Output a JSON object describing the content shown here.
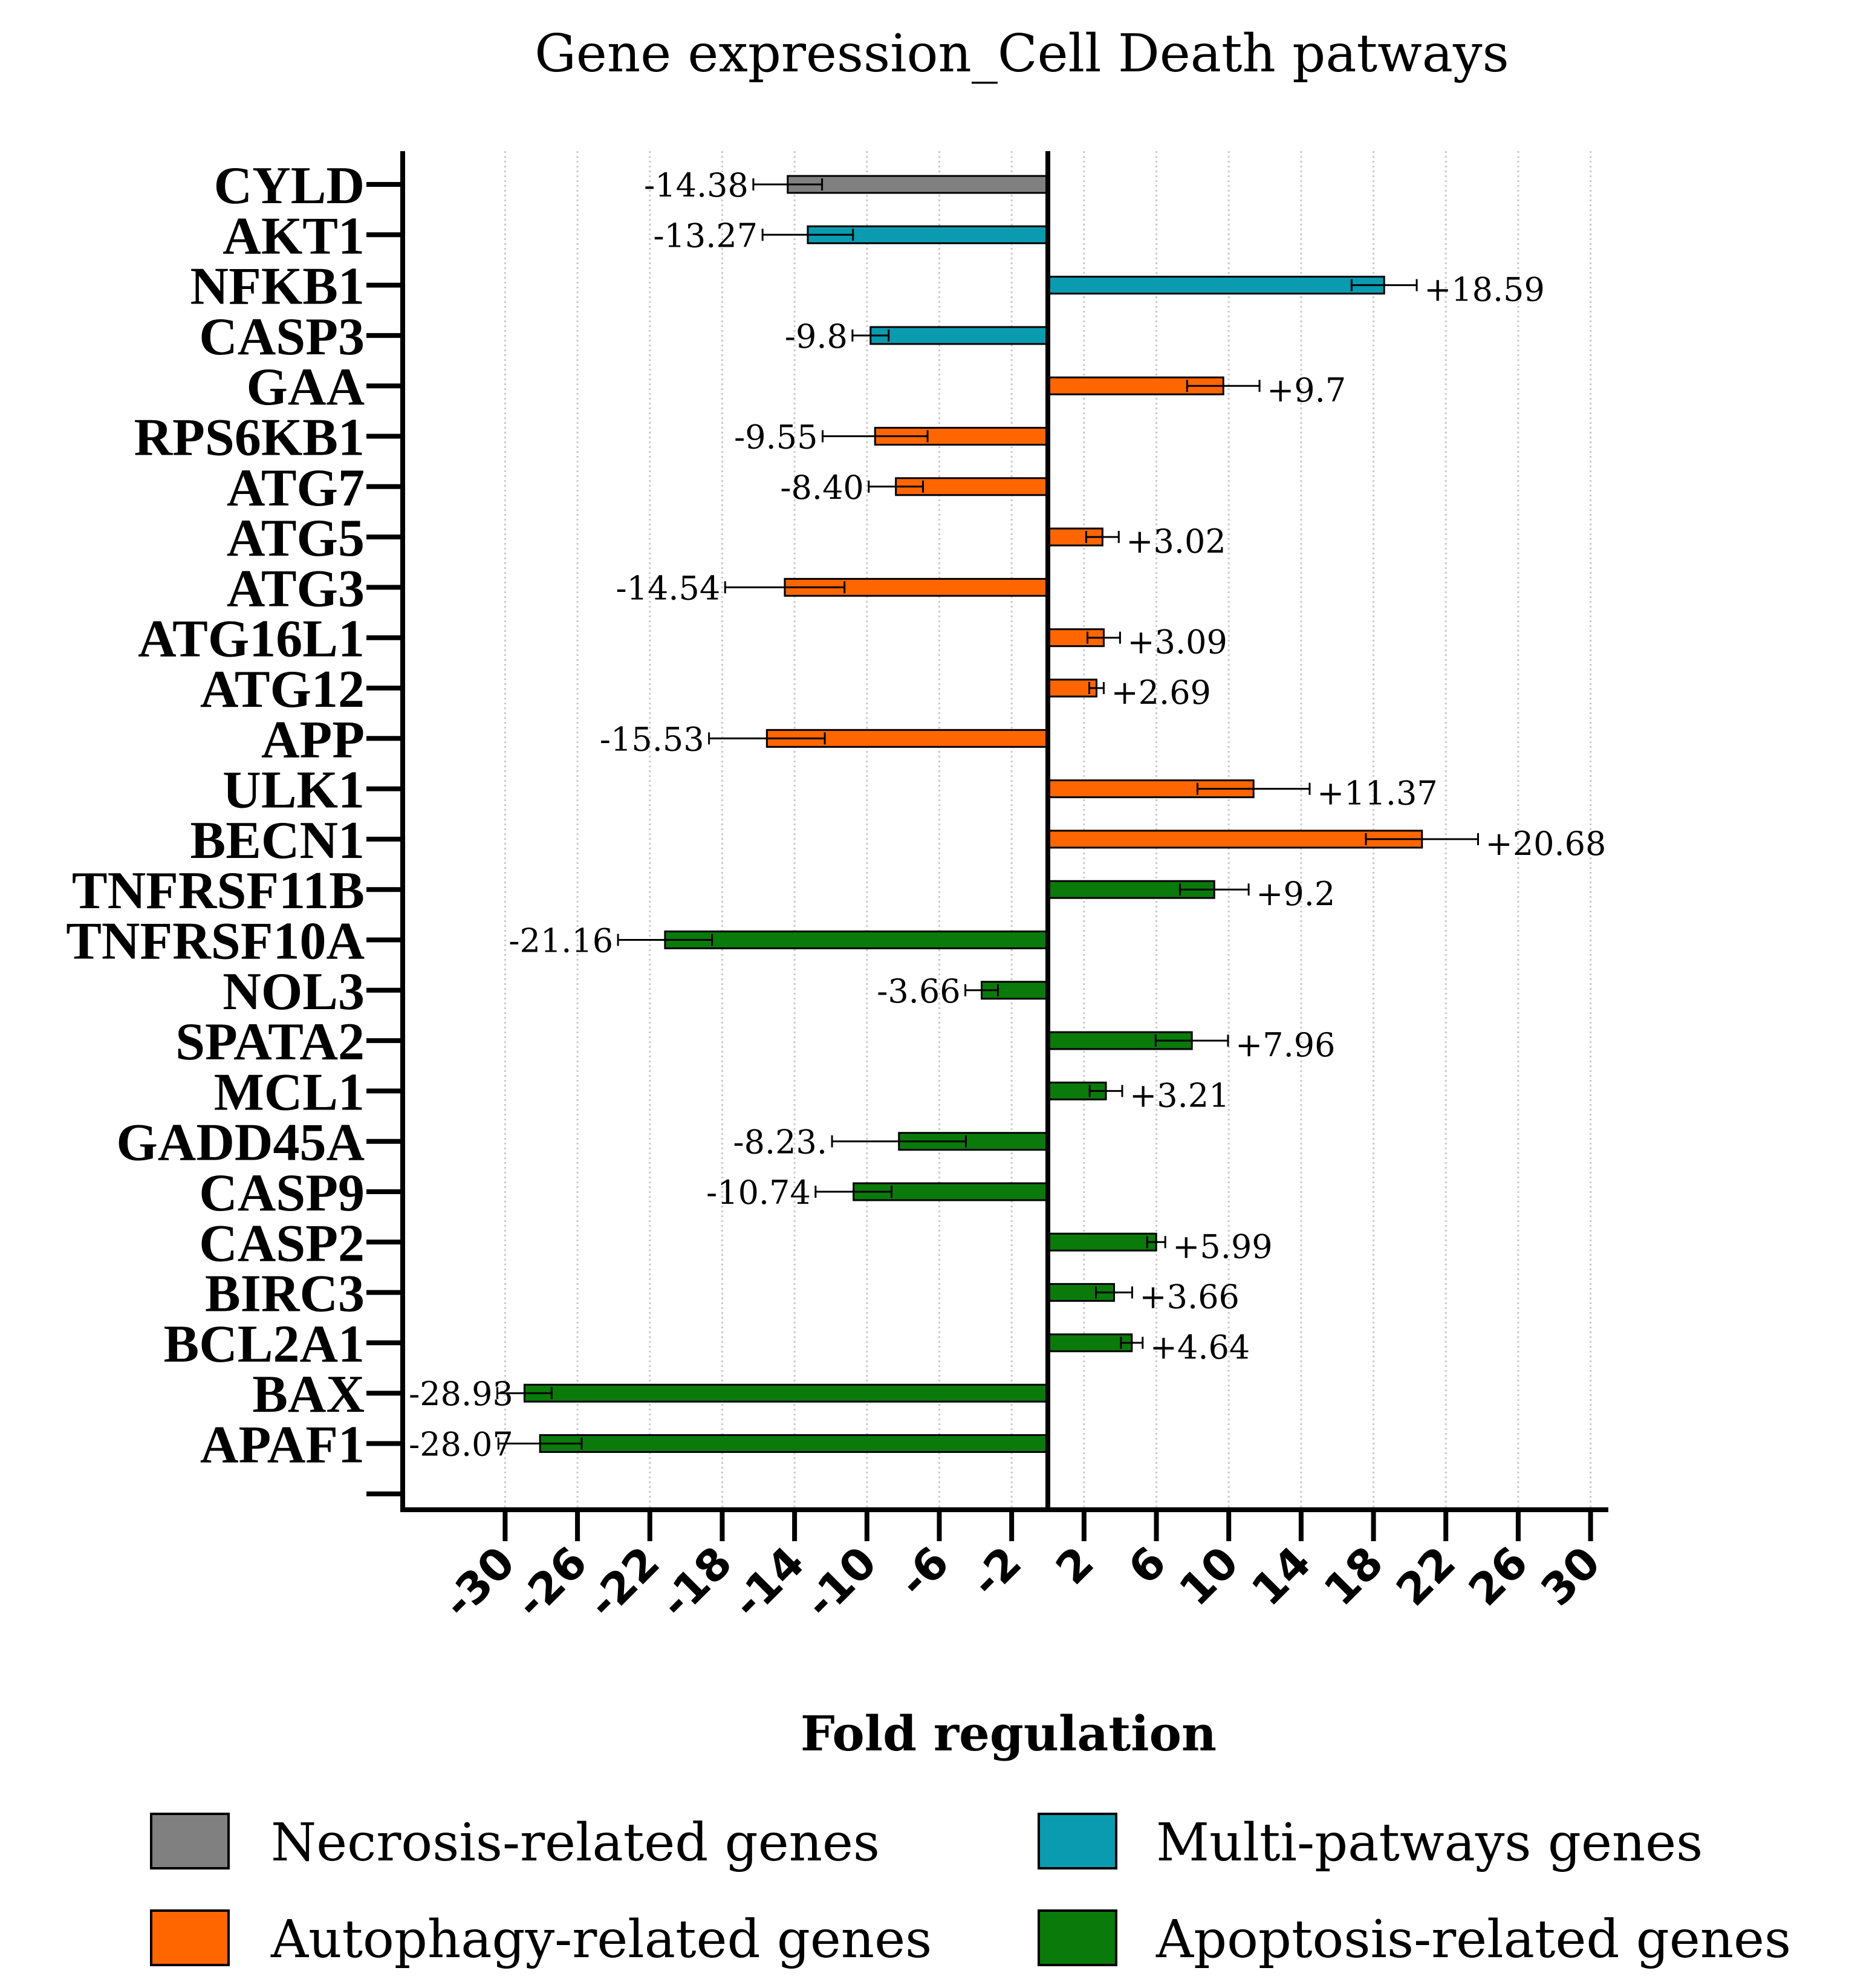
{
  "chart_data": {
    "type": "bar",
    "orientation": "horizontal",
    "title": "Gene expression_Cell Death patways",
    "xlabel": "Fold regulation",
    "ylabel": "",
    "xlim": [
      -34,
      34
    ],
    "xticks": [
      -30,
      -26,
      -22,
      -18,
      -14,
      -10,
      -6,
      -2,
      2,
      6,
      10,
      14,
      18,
      22,
      26,
      30
    ],
    "grid": true,
    "colors": {
      "Necrosis": "#808080",
      "Multi": "#0a9bb0",
      "Autophagy": "#ff6600",
      "Apoptosis": "#0a7a0a"
    },
    "legend": [
      {
        "label": "Necrosis-related genes",
        "group": "Necrosis"
      },
      {
        "label": "Multi-patways genes",
        "group": "Multi"
      },
      {
        "label": "Autophagy-related genes",
        "group": "Autophagy"
      },
      {
        "label": "Apoptosis-related genes",
        "group": "Apoptosis"
      }
    ],
    "bars": [
      {
        "gene": "CYLD",
        "value": -14.38,
        "label": "-14.38",
        "err": 1.9,
        "group": "Necrosis"
      },
      {
        "gene": "AKT1",
        "value": -13.27,
        "label": "-13.27",
        "err": 2.5,
        "group": "Multi"
      },
      {
        "gene": "NFKB1",
        "value": 18.59,
        "label": "+18.59",
        "err": 1.8,
        "group": "Multi"
      },
      {
        "gene": "CASP3",
        "value": -9.8,
        "label": "-9.8",
        "err": 1.0,
        "group": "Multi"
      },
      {
        "gene": "GAA",
        "value": 9.7,
        "label": "+9.7",
        "err": 2.0,
        "group": "Autophagy"
      },
      {
        "gene": "RPS6KB1",
        "value": -9.55,
        "label": "-9.55",
        "err": 2.9,
        "group": "Autophagy"
      },
      {
        "gene": "ATG7",
        "value": -8.4,
        "label": "-8.40",
        "err": 1.5,
        "group": "Autophagy"
      },
      {
        "gene": "ATG5",
        "value": 3.02,
        "label": "+3.02",
        "err": 0.9,
        "group": "Autophagy"
      },
      {
        "gene": "ATG3",
        "value": -14.54,
        "label": "-14.54",
        "err": 3.3,
        "group": "Autophagy"
      },
      {
        "gene": "ATG16L1",
        "value": 3.09,
        "label": "+3.09",
        "err": 0.9,
        "group": "Autophagy"
      },
      {
        "gene": "ATG12",
        "value": 2.69,
        "label": "+2.69",
        "err": 0.4,
        "group": "Autophagy"
      },
      {
        "gene": "APP",
        "value": -15.53,
        "label": "-15.53",
        "err": 3.2,
        "group": "Autophagy"
      },
      {
        "gene": "ULK1",
        "value": 11.37,
        "label": "+11.37",
        "err": 3.1,
        "group": "Autophagy"
      },
      {
        "gene": "BECN1",
        "value": 20.68,
        "label": "+20.68",
        "err": 3.1,
        "group": "Autophagy"
      },
      {
        "gene": "TNFRSF11B",
        "value": 9.2,
        "label": "+9.2",
        "err": 1.9,
        "group": "Apoptosis"
      },
      {
        "gene": "TNFRSF10A",
        "value": -21.16,
        "label": "-21.16",
        "err": 2.6,
        "group": "Apoptosis"
      },
      {
        "gene": "NOL3",
        "value": -3.66,
        "label": "-3.66",
        "err": 0.9,
        "group": "Apoptosis"
      },
      {
        "gene": "SPATA2",
        "value": 7.96,
        "label": "+7.96",
        "err": 2.0,
        "group": "Apoptosis"
      },
      {
        "gene": "MCL1",
        "value": 3.21,
        "label": "+3.21",
        "err": 0.9,
        "group": "Apoptosis"
      },
      {
        "gene": "GADD45A",
        "value": -8.23,
        "label": "-8.23.",
        "err": 3.7,
        "group": "Apoptosis"
      },
      {
        "gene": "CASP9",
        "value": -10.74,
        "label": "-10.74",
        "err": 2.1,
        "group": "Apoptosis"
      },
      {
        "gene": "CASP2",
        "value": 5.99,
        "label": "+5.99",
        "err": 0.5,
        "group": "Apoptosis"
      },
      {
        "gene": "BIRC3",
        "value": 3.66,
        "label": "+3.66",
        "err": 1.0,
        "group": "Apoptosis"
      },
      {
        "gene": "BCL2A1",
        "value": 4.64,
        "label": "+4.64",
        "err": 0.6,
        "group": "Apoptosis"
      },
      {
        "gene": "BAX",
        "value": -28.93,
        "label": "-28.93",
        "err": 1.5,
        "group": "Apoptosis"
      },
      {
        "gene": "APAF1",
        "value": -28.07,
        "label": "-28.07",
        "err": 2.3,
        "group": "Apoptosis"
      }
    ]
  }
}
